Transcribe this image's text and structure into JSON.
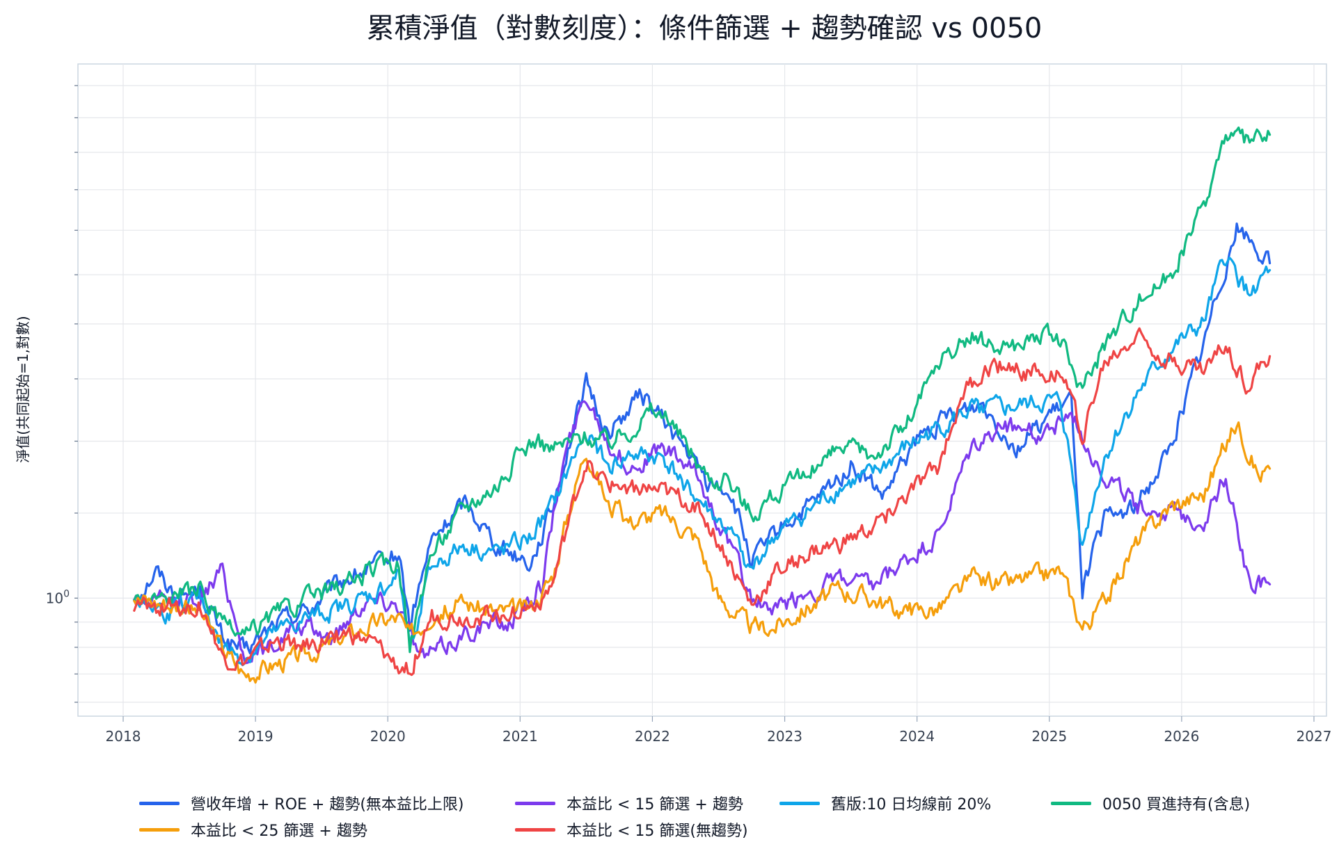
{
  "chart_data": {
    "type": "line",
    "title": "累積淨值（對數刻度）：條件篩選 + 趨勢確認 vs 0050",
    "ylabel": "淨值(共同起始=1,對數)",
    "xlabel": "",
    "y_scale": "log",
    "ylim": [
      0.8,
      3.05
    ],
    "xlim": [
      "2017-08",
      "2027-01"
    ],
    "x_ticks": [
      "2018",
      "2019",
      "2020",
      "2021",
      "2022",
      "2023",
      "2024",
      "2025",
      "2026",
      "2027"
    ],
    "y_tick_label": "10^0",
    "grid": true,
    "legend_position": "bottom",
    "series": [
      {
        "name": "營收年增 + ROE + 趨勢(無本益比上限)",
        "color": "#2563eb",
        "x": [
          "2018-02",
          "2018-04",
          "2018-06",
          "2018-08",
          "2018-10",
          "2018-12",
          "2019-03",
          "2019-06",
          "2019-09",
          "2019-12",
          "2020-02",
          "2020-03",
          "2020-05",
          "2020-08",
          "2020-11",
          "2021-02",
          "2021-04",
          "2021-07",
          "2021-09",
          "2021-12",
          "2022-03",
          "2022-06",
          "2022-08",
          "2022-10",
          "2023-01",
          "2023-04",
          "2023-07",
          "2023-10",
          "2024-01",
          "2024-04",
          "2024-07",
          "2024-10",
          "2025-01",
          "2025-03",
          "2025-04",
          "2025-06",
          "2025-09",
          "2025-12",
          "2026-03",
          "2026-06",
          "2026-09"
        ],
        "values": [
          1.0,
          1.06,
          1.0,
          1.02,
          0.92,
          0.89,
          0.95,
          0.98,
          1.04,
          1.07,
          1.1,
          0.94,
          1.13,
          1.23,
          1.12,
          1.08,
          1.22,
          1.58,
          1.42,
          1.55,
          1.42,
          1.28,
          1.26,
          1.08,
          1.17,
          1.23,
          1.33,
          1.24,
          1.4,
          1.48,
          1.52,
          1.38,
          1.48,
          1.52,
          1.02,
          1.18,
          1.22,
          1.38,
          1.72,
          2.22,
          2.05
        ]
      },
      {
        "name": "本益比 < 15 篩選 + 趨勢",
        "color": "#7c3aed",
        "x": [
          "2018-02",
          "2018-05",
          "2018-08",
          "2018-10",
          "2018-12",
          "2019-02",
          "2019-05",
          "2019-08",
          "2019-11",
          "2020-02",
          "2020-04",
          "2020-06",
          "2020-09",
          "2020-12",
          "2021-03",
          "2021-05",
          "2021-07",
          "2021-09",
          "2021-11",
          "2022-02",
          "2022-05",
          "2022-08",
          "2022-10",
          "2022-12",
          "2023-03",
          "2023-06",
          "2023-09",
          "2023-12",
          "2024-03",
          "2024-06",
          "2024-09",
          "2024-12",
          "2025-03",
          "2025-06",
          "2025-09",
          "2025-12",
          "2026-03",
          "2026-05",
          "2026-07",
          "2026-09"
        ],
        "values": [
          1.0,
          0.99,
          1.0,
          1.06,
          0.88,
          0.9,
          0.94,
          0.92,
          1.0,
          0.99,
          0.88,
          0.9,
          0.94,
          0.95,
          1.03,
          1.35,
          1.55,
          1.4,
          1.32,
          1.38,
          1.3,
          1.12,
          1.0,
          0.97,
          1.01,
          1.04,
          1.02,
          1.08,
          1.14,
          1.38,
          1.45,
          1.42,
          1.48,
          1.3,
          1.22,
          1.2,
          1.18,
          1.3,
          1.04,
          1.03
        ]
      },
      {
        "name": "舊版:10 日均線前 20%",
        "color": "#0ea5e9",
        "x": [
          "2018-02",
          "2018-05",
          "2018-08",
          "2018-10",
          "2018-12",
          "2019-03",
          "2019-06",
          "2019-09",
          "2019-12",
          "2020-02",
          "2020-03",
          "2020-05",
          "2020-08",
          "2020-11",
          "2021-02",
          "2021-04",
          "2021-07",
          "2021-09",
          "2021-11",
          "2022-02",
          "2022-05",
          "2022-08",
          "2022-10",
          "2022-12",
          "2023-03",
          "2023-06",
          "2023-09",
          "2023-12",
          "2024-03",
          "2024-06",
          "2024-09",
          "2024-12",
          "2025-02",
          "2025-04",
          "2025-06",
          "2025-09",
          "2025-12",
          "2026-03",
          "2026-05",
          "2026-07",
          "2026-09"
        ],
        "values": [
          1.0,
          0.97,
          1.0,
          0.9,
          0.88,
          0.93,
          0.96,
          0.98,
          1.01,
          1.05,
          0.9,
          1.07,
          1.12,
          1.1,
          1.14,
          1.22,
          1.43,
          1.32,
          1.36,
          1.35,
          1.24,
          1.15,
          1.06,
          1.14,
          1.2,
          1.27,
          1.3,
          1.38,
          1.44,
          1.5,
          1.5,
          1.52,
          1.52,
          1.12,
          1.35,
          1.55,
          1.7,
          1.8,
          2.08,
          1.92,
          2.02
        ]
      },
      {
        "name": "0050 買進持有(含息)",
        "color": "#10b981",
        "x": [
          "2018-02",
          "2018-05",
          "2018-08",
          "2018-10",
          "2018-12",
          "2019-03",
          "2019-06",
          "2019-09",
          "2019-12",
          "2020-02",
          "2020-03",
          "2020-05",
          "2020-08",
          "2020-11",
          "2021-02",
          "2021-04",
          "2021-07",
          "2021-09",
          "2021-11",
          "2022-01",
          "2022-03",
          "2022-06",
          "2022-08",
          "2022-10",
          "2022-12",
          "2023-03",
          "2023-06",
          "2023-09",
          "2023-12",
          "2024-03",
          "2024-06",
          "2024-09",
          "2024-12",
          "2025-02",
          "2025-04",
          "2025-06",
          "2025-09",
          "2025-12",
          "2026-03",
          "2026-05",
          "2026-07",
          "2026-09"
        ],
        "values": [
          1.0,
          1.0,
          1.02,
          0.94,
          0.92,
          0.97,
          1.0,
          1.03,
          1.07,
          1.08,
          0.9,
          1.1,
          1.22,
          1.28,
          1.4,
          1.38,
          1.42,
          1.4,
          1.44,
          1.5,
          1.44,
          1.3,
          1.28,
          1.2,
          1.25,
          1.3,
          1.38,
          1.36,
          1.45,
          1.65,
          1.75,
          1.7,
          1.76,
          1.74,
          1.55,
          1.72,
          1.9,
          2.0,
          2.3,
          2.7,
          2.65,
          2.7
        ]
      },
      {
        "name": "本益比 < 25 篩選 + 趨勢",
        "color": "#f59e0b",
        "x": [
          "2018-02",
          "2018-05",
          "2018-08",
          "2018-10",
          "2018-12",
          "2019-03",
          "2019-06",
          "2019-09",
          "2019-12",
          "2020-02",
          "2020-03",
          "2020-05",
          "2020-08",
          "2020-11",
          "2021-02",
          "2021-04",
          "2021-07",
          "2021-09",
          "2021-11",
          "2022-02",
          "2022-05",
          "2022-07",
          "2022-10",
          "2022-12",
          "2023-03",
          "2023-06",
          "2023-09",
          "2023-12",
          "2024-03",
          "2024-06",
          "2024-09",
          "2024-12",
          "2025-02",
          "2025-04",
          "2025-06",
          "2025-09",
          "2025-12",
          "2026-03",
          "2026-06",
          "2026-08",
          "2026-09"
        ],
        "values": [
          1.0,
          0.99,
          0.97,
          0.9,
          0.85,
          0.87,
          0.89,
          0.92,
          0.95,
          0.96,
          0.92,
          0.97,
          0.99,
          0.97,
          0.98,
          1.05,
          1.38,
          1.22,
          1.18,
          1.2,
          1.14,
          1.0,
          0.94,
          0.94,
          0.98,
          1.02,
          1.0,
          0.97,
          0.98,
          1.04,
          1.03,
          1.05,
          1.06,
          0.94,
          0.99,
          1.13,
          1.22,
          1.25,
          1.46,
          1.3,
          1.32
        ]
      },
      {
        "name": "本益比 < 15 篩選(無趨勢)",
        "color": "#ef4444",
        "x": [
          "2018-02",
          "2018-05",
          "2018-08",
          "2018-10",
          "2018-12",
          "2019-03",
          "2019-06",
          "2019-09",
          "2019-12",
          "2020-02",
          "2020-03",
          "2020-05",
          "2020-08",
          "2020-11",
          "2021-02",
          "2021-04",
          "2021-07",
          "2021-09",
          "2021-11",
          "2022-02",
          "2022-05",
          "2022-08",
          "2022-10",
          "2022-12",
          "2023-03",
          "2023-06",
          "2023-09",
          "2023-12",
          "2024-03",
          "2024-05",
          "2024-08",
          "2024-11",
          "2025-02",
          "2025-04",
          "2025-06",
          "2025-09",
          "2025-12",
          "2026-03",
          "2026-05",
          "2026-07",
          "2026-09"
        ],
        "values": [
          0.98,
          0.98,
          0.99,
          0.88,
          0.87,
          0.91,
          0.9,
          0.93,
          0.9,
          0.86,
          0.86,
          0.96,
          0.96,
          0.97,
          0.98,
          1.03,
          1.34,
          1.27,
          1.27,
          1.25,
          1.22,
          1.08,
          0.98,
          1.05,
          1.1,
          1.12,
          1.16,
          1.24,
          1.32,
          1.55,
          1.65,
          1.62,
          1.64,
          1.42,
          1.65,
          1.76,
          1.67,
          1.63,
          1.72,
          1.58,
          1.68
        ]
      }
    ]
  }
}
